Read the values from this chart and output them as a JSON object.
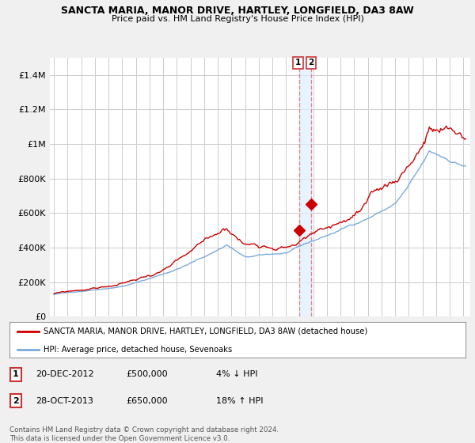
{
  "title": "SANCTA MARIA, MANOR DRIVE, HARTLEY, LONGFIELD, DA3 8AW",
  "subtitle": "Price paid vs. HM Land Registry's House Price Index (HPI)",
  "legend_line1": "SANCTA MARIA, MANOR DRIVE, HARTLEY, LONGFIELD, DA3 8AW (detached house)",
  "legend_line2": "HPI: Average price, detached house, Sevenoaks",
  "footnote": "Contains HM Land Registry data © Crown copyright and database right 2024.\nThis data is licensed under the Open Government Licence v3.0.",
  "transaction1_date": "20-DEC-2012",
  "transaction1_price": "£500,000",
  "transaction1_hpi": "4% ↓ HPI",
  "transaction2_date": "28-OCT-2013",
  "transaction2_price": "£650,000",
  "transaction2_hpi": "18% ↑ HPI",
  "ylim": [
    0,
    1500000
  ],
  "yticks": [
    0,
    200000,
    400000,
    600000,
    800000,
    1000000,
    1200000,
    1400000
  ],
  "ytick_labels": [
    "£0",
    "£200K",
    "£400K",
    "£600K",
    "£800K",
    "£1M",
    "£1.2M",
    "£1.4M"
  ],
  "line_color_red": "#cc0000",
  "line_color_blue": "#7aaadd",
  "vline_color": "#dd8888",
  "shade_color": "#ddeeff",
  "bg_color": "#f0f0f0",
  "plot_bg": "#ffffff",
  "grid_color": "#cccccc",
  "transaction1_x": 2012.97,
  "transaction1_y": 500000,
  "transaction2_x": 2013.83,
  "transaction2_y": 650000,
  "xlim_left": 1994.7,
  "xlim_right": 2025.5
}
